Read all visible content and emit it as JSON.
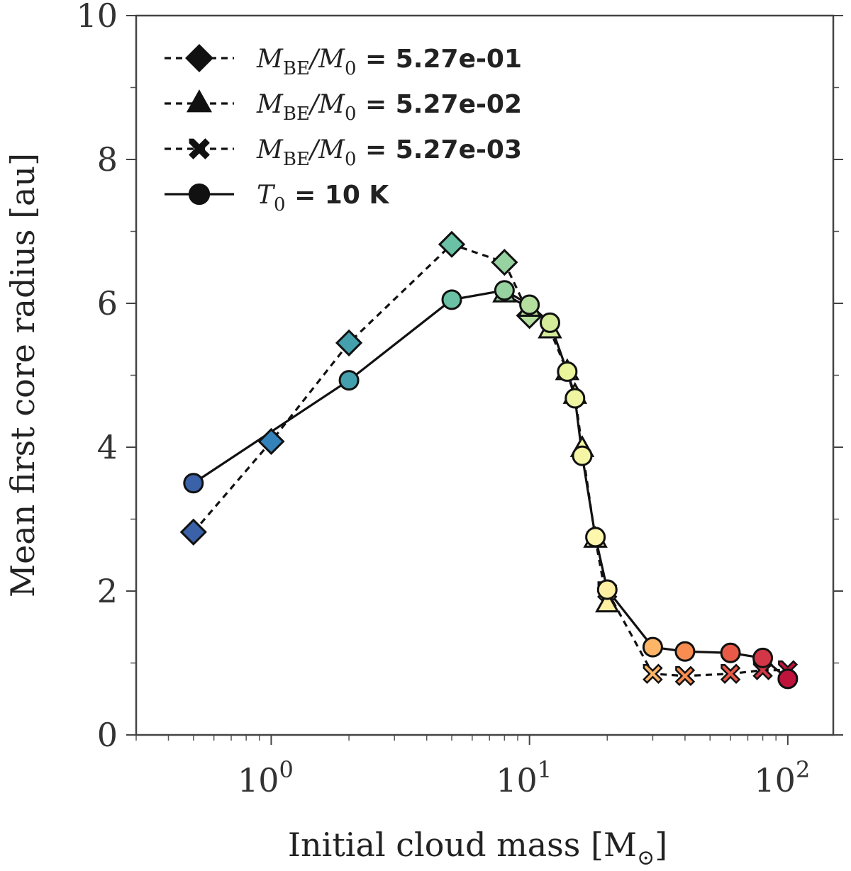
{
  "chart_data": {
    "type": "line",
    "title": "",
    "xlabel": "Initial cloud mass [M",
    "xlabel_sub": "⊙",
    "xlabel_end": "]",
    "ylabel": "Mean first core radius [au]",
    "xscale": "log",
    "xlim": [
      0.3,
      150
    ],
    "ylim": [
      0,
      10
    ],
    "xticks": [
      {
        "value": 1,
        "base": "10",
        "exp": "0"
      },
      {
        "value": 10,
        "base": "10",
        "exp": "1"
      },
      {
        "value": 100,
        "base": "10",
        "exp": "2"
      }
    ],
    "yticks": [
      0,
      2,
      4,
      6,
      8,
      10
    ],
    "yticks_minor": [
      1,
      3,
      5,
      7,
      9
    ],
    "legend_position": "top-left",
    "colormap": "Spectral_r",
    "series": [
      {
        "name": "M_BE/M_0 = 5.27e-01",
        "label_math_a": "M",
        "label_sub_a": "BE",
        "label_math_b": "/M",
        "label_sub_b": "0",
        "label_rest": " = 5.27e-01",
        "marker": "diamond",
        "linestyle": "dashed",
        "x": [
          0.5,
          1,
          2,
          5,
          8,
          10
        ],
        "y": [
          2.82,
          4.08,
          5.45,
          6.82,
          6.57,
          5.83
        ]
      },
      {
        "name": "M_BE/M_0 = 5.27e-02",
        "label_math_a": "M",
        "label_sub_a": "BE",
        "label_math_b": "/M",
        "label_sub_b": "0",
        "label_rest": " = 5.27e-02",
        "marker": "triangle",
        "linestyle": "dashed",
        "x": [
          8,
          10,
          12,
          14,
          15,
          16,
          18,
          20
        ],
        "y": [
          6.13,
          5.93,
          5.63,
          5.05,
          4.72,
          3.98,
          2.72,
          1.82
        ]
      },
      {
        "name": "M_BE/M_0 = 5.27e-03",
        "label_math_a": "M",
        "label_sub_a": "BE",
        "label_math_b": "/M",
        "label_sub_b": "0",
        "label_rest": " = 5.27e-03",
        "marker": "x",
        "linestyle": "dashed",
        "x": [
          20,
          30,
          40,
          60,
          80,
          100
        ],
        "y": [
          2.0,
          0.85,
          0.82,
          0.85,
          0.9,
          0.9
        ]
      },
      {
        "name": "T_0 = 10 K",
        "label_math_a": "T",
        "label_sub_a": "0",
        "label_math_b": "",
        "label_sub_b": "",
        "label_rest": " = 10 K",
        "marker": "circle",
        "linestyle": "solid",
        "x": [
          0.5,
          2,
          5,
          8,
          10,
          12,
          14,
          15,
          16,
          18,
          20,
          30,
          40,
          60,
          80,
          100
        ],
        "y": [
          3.5,
          4.93,
          6.05,
          6.18,
          5.98,
          5.73,
          5.05,
          4.68,
          3.88,
          2.75,
          2.02,
          1.22,
          1.16,
          1.14,
          1.07,
          0.78
        ]
      }
    ]
  }
}
